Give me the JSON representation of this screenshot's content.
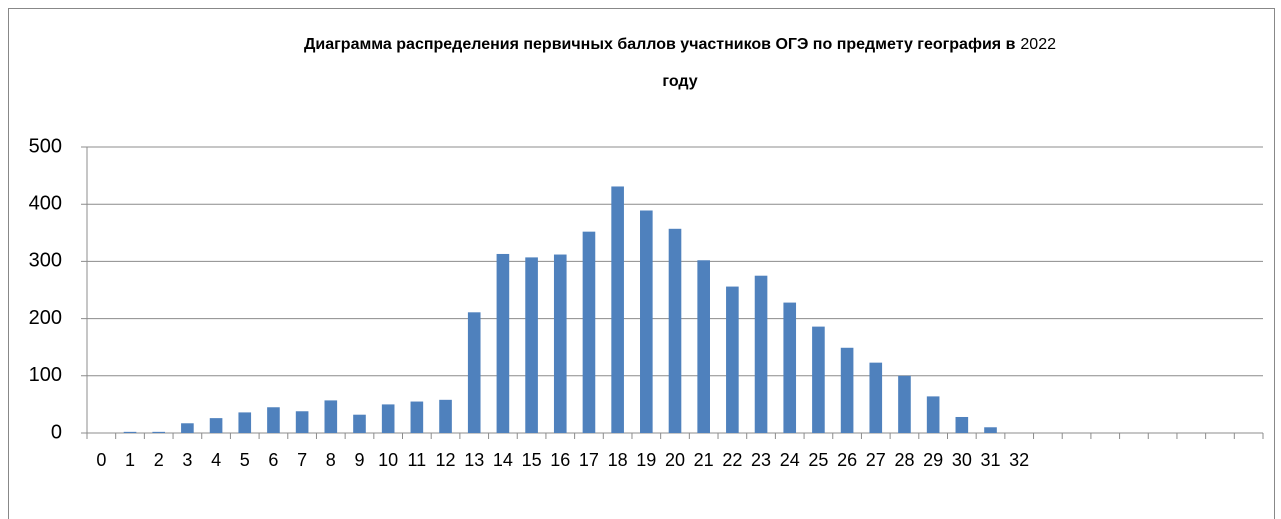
{
  "chart_data": {
    "type": "bar",
    "title": [
      "Диаграмма распределения первичных баллов участников ОГЭ по предмету география в",
      "2022",
      "году"
    ],
    "categories": [
      "0",
      "1",
      "2",
      "3",
      "4",
      "5",
      "6",
      "7",
      "8",
      "9",
      "10",
      "11",
      "12",
      "13",
      "14",
      "15",
      "16",
      "17",
      "18",
      "19",
      "20",
      "21",
      "22",
      "23",
      "24",
      "25",
      "26",
      "27",
      "28",
      "29",
      "30",
      "31",
      "32",
      null,
      null,
      null,
      null,
      null,
      null,
      null,
      null
    ],
    "values": [
      0,
      2,
      2,
      17,
      26,
      36,
      45,
      38,
      57,
      32,
      50,
      55,
      58,
      211,
      313,
      307,
      312,
      352,
      431,
      389,
      357,
      302,
      256,
      275,
      228,
      186,
      149,
      123,
      100,
      64,
      28,
      10,
      0,
      null,
      null,
      null,
      null,
      null,
      null,
      null,
      null
    ],
    "color": "#4f81bd",
    "ylim": [
      0,
      500
    ],
    "yticks": [
      0,
      100,
      200,
      300,
      400,
      500
    ],
    "grid": true
  }
}
